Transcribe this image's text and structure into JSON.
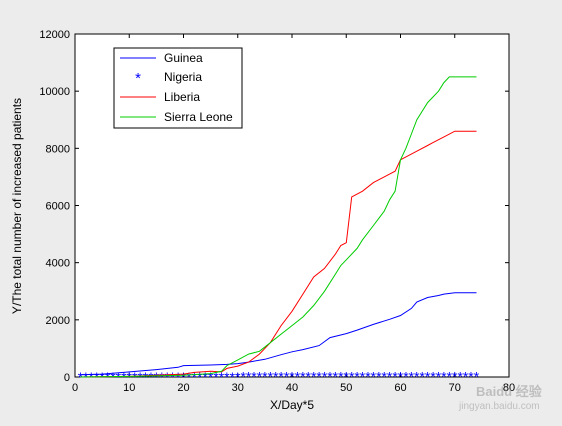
{
  "chart_data": {
    "type": "line",
    "title": "",
    "xlabel": "X/Day*5",
    "ylabel": "Y/The total number of increased patients",
    "xlim": [
      0,
      80
    ],
    "ylim": [
      0,
      12000
    ],
    "xticks": [
      "0",
      "10",
      "20",
      "30",
      "40",
      "50",
      "60",
      "70",
      "80"
    ],
    "yticks": [
      "0",
      "2000",
      "4000",
      "6000",
      "8000",
      "10000",
      "12000"
    ],
    "grid": false,
    "legend_position": "top-left",
    "series": [
      {
        "name": "Guinea",
        "style": "line",
        "color": "#0000ff",
        "x": [
          1,
          5,
          10,
          15,
          19,
          20,
          25,
          28,
          30,
          32,
          35,
          38,
          40,
          42,
          45,
          47,
          50,
          52,
          55,
          58,
          60,
          62,
          63,
          65,
          67,
          68,
          70,
          74
        ],
        "y": [
          80,
          100,
          180,
          260,
          340,
          400,
          420,
          440,
          470,
          520,
          620,
          780,
          880,
          960,
          1100,
          1380,
          1520,
          1640,
          1840,
          2020,
          2150,
          2400,
          2620,
          2780,
          2850,
          2900,
          2950,
          2950
        ]
      },
      {
        "name": "Nigeria",
        "style": "marker",
        "color": "#0000ff",
        "x": [
          1,
          2,
          3,
          4,
          5,
          6,
          7,
          8,
          9,
          10,
          11,
          12,
          13,
          14,
          15,
          16,
          17,
          18,
          19,
          20,
          21,
          22,
          23,
          24,
          25,
          26,
          27,
          28,
          29,
          30,
          31,
          32,
          33,
          34,
          35,
          36,
          37,
          38,
          39,
          40,
          41,
          42,
          43,
          44,
          45,
          46,
          47,
          48,
          49,
          50,
          51,
          52,
          53,
          54,
          55,
          56,
          57,
          58,
          59,
          60,
          61,
          62,
          63,
          64,
          65,
          66,
          67,
          68,
          69,
          70,
          71,
          72,
          73,
          74
        ],
        "y": [
          0,
          0,
          0,
          0,
          0,
          0,
          0,
          0,
          0,
          0,
          0,
          0,
          0,
          0,
          0,
          0,
          0,
          0,
          0,
          0,
          0,
          0,
          0,
          0,
          0,
          0,
          0,
          0,
          0,
          0,
          10,
          10,
          10,
          10,
          15,
          15,
          15,
          18,
          18,
          19,
          19,
          19,
          20,
          20,
          20,
          20,
          20,
          20,
          20,
          20,
          20,
          20,
          20,
          20,
          20,
          20,
          20,
          20,
          20,
          20,
          20,
          20,
          20,
          20,
          20,
          20,
          20,
          20,
          20,
          20,
          20,
          20,
          20,
          20
        ]
      },
      {
        "name": "Liberia",
        "style": "line",
        "color": "#ff0000",
        "x": [
          1,
          10,
          20,
          22,
          25,
          27,
          28,
          30,
          32,
          34,
          36,
          38,
          40,
          42,
          44,
          46,
          48,
          49,
          50,
          51,
          53,
          55,
          57,
          58,
          59,
          60,
          61,
          63,
          65,
          66,
          68,
          70,
          74
        ],
        "y": [
          0,
          20,
          100,
          160,
          200,
          180,
          300,
          380,
          520,
          800,
          1200,
          1800,
          2300,
          2900,
          3500,
          3800,
          4300,
          4600,
          4700,
          6300,
          6500,
          6800,
          7000,
          7100,
          7200,
          7600,
          7700,
          7900,
          8100,
          8200,
          8400,
          8600,
          8600
        ]
      },
      {
        "name": "Sierra Leone",
        "style": "line",
        "color": "#00cc00",
        "x": [
          1,
          10,
          20,
          25,
          27,
          28,
          30,
          32,
          34,
          36,
          38,
          40,
          42,
          44,
          46,
          48,
          49,
          50,
          52,
          53,
          55,
          57,
          58,
          59,
          60,
          61,
          62,
          63,
          65,
          67,
          68,
          69,
          70,
          74
        ],
        "y": [
          0,
          20,
          60,
          120,
          200,
          400,
          600,
          800,
          900,
          1200,
          1500,
          1800,
          2100,
          2500,
          3000,
          3600,
          3900,
          4100,
          4500,
          4800,
          5300,
          5800,
          6200,
          6500,
          7600,
          8000,
          8500,
          9000,
          9600,
          10000,
          10300,
          10500,
          10500,
          10500
        ]
      }
    ]
  },
  "watermark": {
    "line1": "Baidu 经验",
    "line2": "jingyan.baidu.com"
  }
}
